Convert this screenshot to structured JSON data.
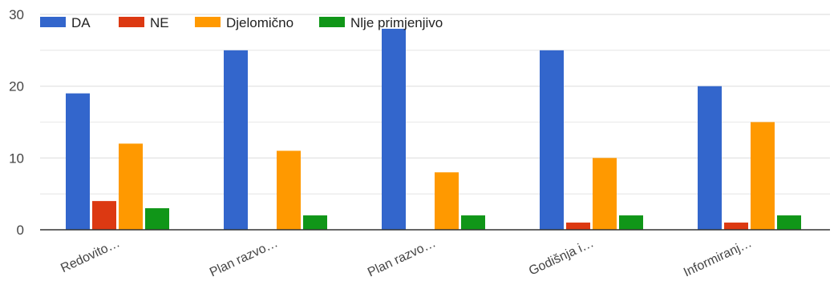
{
  "chart_data": {
    "type": "bar",
    "title": "",
    "xlabel": "",
    "ylabel": "",
    "categories": [
      "Redovito…",
      "Plan razvo…",
      "Plan razvo…",
      "Godišnja i…",
      "Informiranj…"
    ],
    "series": [
      {
        "name": "DA",
        "color": "#3366cc",
        "values": [
          19,
          25,
          28,
          25,
          20
        ]
      },
      {
        "name": "NE",
        "color": "#dc3912",
        "values": [
          4,
          0,
          0,
          1,
          1
        ]
      },
      {
        "name": "Djelomično",
        "color": "#ff9900",
        "values": [
          12,
          11,
          8,
          10,
          15
        ]
      },
      {
        "name": "Nlje primjenjivo",
        "color": "#109618",
        "values": [
          3,
          2,
          2,
          2,
          2
        ]
      }
    ],
    "ylim": [
      0,
      30
    ],
    "yticks": [
      0,
      10,
      20,
      30
    ],
    "grid": true,
    "legend_position": "top-left",
    "colors": {
      "grid": "#e0e0e0",
      "axis": "#333333"
    }
  }
}
